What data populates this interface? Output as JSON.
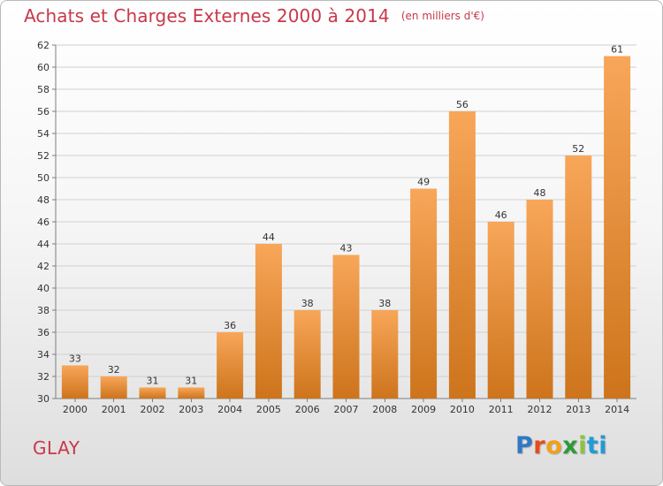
{
  "title": {
    "main": "Achats et Charges Externes 2000 à 2014",
    "unit": "(en milliers d'€)"
  },
  "commune": "GLAY",
  "brand": {
    "parts": [
      "P",
      "r",
      "o",
      "x",
      "i",
      "ti"
    ]
  },
  "colors": {
    "title": "#c8384a",
    "bar_light": "#f7a354",
    "bar_dark": "#c8701a",
    "grid": "#d0d0d0",
    "axis": "#7d7d7d"
  },
  "chart_data": {
    "type": "bar",
    "categories": [
      "2000",
      "2001",
      "2002",
      "2003",
      "2004",
      "2005",
      "2006",
      "2007",
      "2008",
      "2009",
      "2010",
      "2011",
      "2012",
      "2013",
      "2014"
    ],
    "values": [
      33,
      32,
      31,
      31,
      36,
      44,
      38,
      43,
      38,
      49,
      56,
      46,
      48,
      52,
      61
    ],
    "ylim": [
      30,
      62
    ],
    "yticks": [
      30,
      32,
      34,
      36,
      38,
      40,
      42,
      44,
      46,
      48,
      50,
      52,
      54,
      56,
      58,
      60,
      62
    ],
    "grid": true,
    "title": "Achats et Charges Externes 2000 à 2014",
    "xlabel": "",
    "ylabel": ""
  }
}
